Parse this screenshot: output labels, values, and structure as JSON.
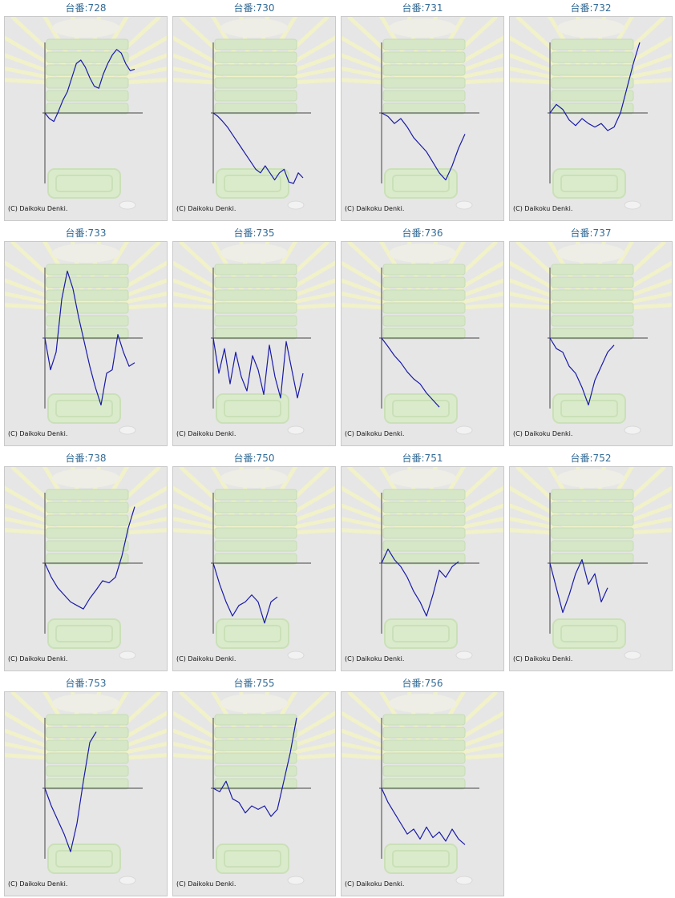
{
  "colors": {
    "line": "#1a1aa8",
    "axis": "#444444",
    "title": "#336b96",
    "panel_bg": "#e6e6e6"
  },
  "chart_data": [
    {
      "type": "line",
      "title": "台番:728",
      "footer": "(C) Daikoku Denki.",
      "ylim": [
        -1,
        1
      ],
      "grid": false,
      "series": [
        {
          "values": [
            0,
            -0.08,
            -0.12,
            0.02,
            0.18,
            0.3,
            0.5,
            0.7,
            0.75,
            0.65,
            0.5,
            0.38,
            0.35,
            0.55,
            0.7,
            0.82,
            0.9,
            0.85,
            0.7,
            0.6,
            0.62
          ]
        }
      ]
    },
    {
      "type": "line",
      "title": "台番:730",
      "footer": "(C) Daikoku Denki.",
      "ylim": [
        -1,
        1
      ],
      "grid": false,
      "series": [
        {
          "values": [
            0,
            -0.05,
            -0.12,
            -0.2,
            -0.3,
            -0.4,
            -0.5,
            -0.6,
            -0.7,
            -0.8,
            -0.85,
            -0.75,
            -0.85,
            -0.95,
            -0.85,
            -0.8,
            -0.98,
            -1.0,
            -0.85,
            -0.92
          ]
        }
      ]
    },
    {
      "type": "line",
      "title": "台番:731",
      "footer": "(C) Daikoku Denki.",
      "ylim": [
        -1,
        1
      ],
      "grid": false,
      "series": [
        {
          "values": [
            0,
            -0.05,
            -0.15,
            -0.08,
            -0.2,
            -0.35,
            -0.45,
            -0.55,
            -0.7,
            -0.85,
            -0.95,
            -0.75,
            -0.5,
            -0.3
          ]
        }
      ]
    },
    {
      "type": "line",
      "title": "台番:732",
      "footer": "(C) Daikoku Denki.",
      "ylim": [
        -1,
        1
      ],
      "grid": false,
      "series": [
        {
          "values": [
            0,
            0.12,
            0.05,
            -0.1,
            -0.18,
            -0.08,
            -0.15,
            -0.2,
            -0.15,
            -0.25,
            -0.2,
            0.0,
            0.35,
            0.7,
            1.0
          ]
        }
      ]
    },
    {
      "type": "line",
      "title": "台番:733",
      "footer": "(C) Daikoku Denki.",
      "ylim": [
        -1,
        1
      ],
      "grid": false,
      "series": [
        {
          "values": [
            0,
            -0.45,
            -0.2,
            0.55,
            0.95,
            0.7,
            0.3,
            -0.05,
            -0.4,
            -0.7,
            -0.95,
            -0.5,
            -0.45,
            0.05,
            -0.2,
            -0.4,
            -0.35
          ]
        }
      ]
    },
    {
      "type": "line",
      "title": "台番:735",
      "footer": "(C) Daikoku Denki.",
      "ylim": [
        -1,
        1
      ],
      "grid": false,
      "series": [
        {
          "values": [
            0,
            -0.5,
            -0.15,
            -0.65,
            -0.2,
            -0.55,
            -0.75,
            -0.25,
            -0.45,
            -0.8,
            -0.1,
            -0.55,
            -0.85,
            -0.05,
            -0.45,
            -0.85,
            -0.5
          ]
        }
      ]
    },
    {
      "type": "line",
      "title": "台番:736",
      "footer": "(C) Daikoku Denki.",
      "ylim": [
        -1,
        1
      ],
      "grid": false,
      "series": [
        {
          "values": [
            0,
            -0.12,
            -0.25,
            -0.35,
            -0.48,
            -0.58,
            -0.65,
            -0.78,
            -0.88,
            -0.98
          ]
        }
      ]
    },
    {
      "type": "line",
      "title": "台番:737",
      "footer": "(C) Daikoku Denki.",
      "ylim": [
        -1,
        1
      ],
      "grid": false,
      "series": [
        {
          "values": [
            0,
            -0.15,
            -0.2,
            -0.4,
            -0.5,
            -0.7,
            -0.95,
            -0.6,
            -0.4,
            -0.2,
            -0.1
          ]
        }
      ]
    },
    {
      "type": "line",
      "title": "台番:738",
      "footer": "(C) Daikoku Denki.",
      "ylim": [
        -1,
        1
      ],
      "grid": false,
      "series": [
        {
          "values": [
            0,
            -0.2,
            -0.35,
            -0.45,
            -0.55,
            -0.6,
            -0.65,
            -0.5,
            -0.38,
            -0.25,
            -0.28,
            -0.2,
            0.1,
            0.5,
            0.8
          ]
        }
      ]
    },
    {
      "type": "line",
      "title": "台番:750",
      "footer": "(C) Daikoku Denki.",
      "ylim": [
        -1,
        1
      ],
      "grid": false,
      "series": [
        {
          "values": [
            0,
            -0.3,
            -0.55,
            -0.75,
            -0.6,
            -0.55,
            -0.45,
            -0.55,
            -0.85,
            -0.55,
            -0.48
          ]
        }
      ]
    },
    {
      "type": "line",
      "title": "台番:751",
      "footer": "(C) Daikoku Denki.",
      "ylim": [
        -1,
        1
      ],
      "grid": false,
      "series": [
        {
          "values": [
            0,
            0.2,
            0.05,
            -0.05,
            -0.2,
            -0.4,
            -0.55,
            -0.75,
            -0.45,
            -0.1,
            -0.2,
            -0.05,
            0.02
          ]
        }
      ]
    },
    {
      "type": "line",
      "title": "台番:752",
      "footer": "(C) Daikoku Denki.",
      "ylim": [
        -1,
        1
      ],
      "grid": false,
      "series": [
        {
          "values": [
            0,
            -0.35,
            -0.7,
            -0.45,
            -0.15,
            0.05,
            -0.3,
            -0.15,
            -0.55,
            -0.35
          ]
        }
      ]
    },
    {
      "type": "line",
      "title": "台番:753",
      "footer": "(C) Daikoku Denki.",
      "ylim": [
        -1,
        1
      ],
      "grid": false,
      "series": [
        {
          "values": [
            0,
            -0.25,
            -0.45,
            -0.65,
            -0.9,
            -0.5,
            0.1,
            0.65,
            0.8
          ]
        }
      ]
    },
    {
      "type": "line",
      "title": "台番:755",
      "footer": "(C) Daikoku Denki.",
      "ylim": [
        -1,
        1
      ],
      "grid": false,
      "series": [
        {
          "values": [
            0,
            -0.05,
            0.1,
            -0.15,
            -0.2,
            -0.35,
            -0.25,
            -0.3,
            -0.25,
            -0.4,
            -0.3,
            0.1,
            0.5,
            1.0
          ]
        }
      ]
    },
    {
      "type": "line",
      "title": "台番:756",
      "footer": "(C) Daikoku Denki.",
      "ylim": [
        -1,
        1
      ],
      "grid": false,
      "series": [
        {
          "values": [
            0,
            -0.2,
            -0.35,
            -0.5,
            -0.65,
            -0.58,
            -0.72,
            -0.55,
            -0.7,
            -0.62,
            -0.75,
            -0.58,
            -0.72,
            -0.8
          ]
        }
      ]
    }
  ]
}
